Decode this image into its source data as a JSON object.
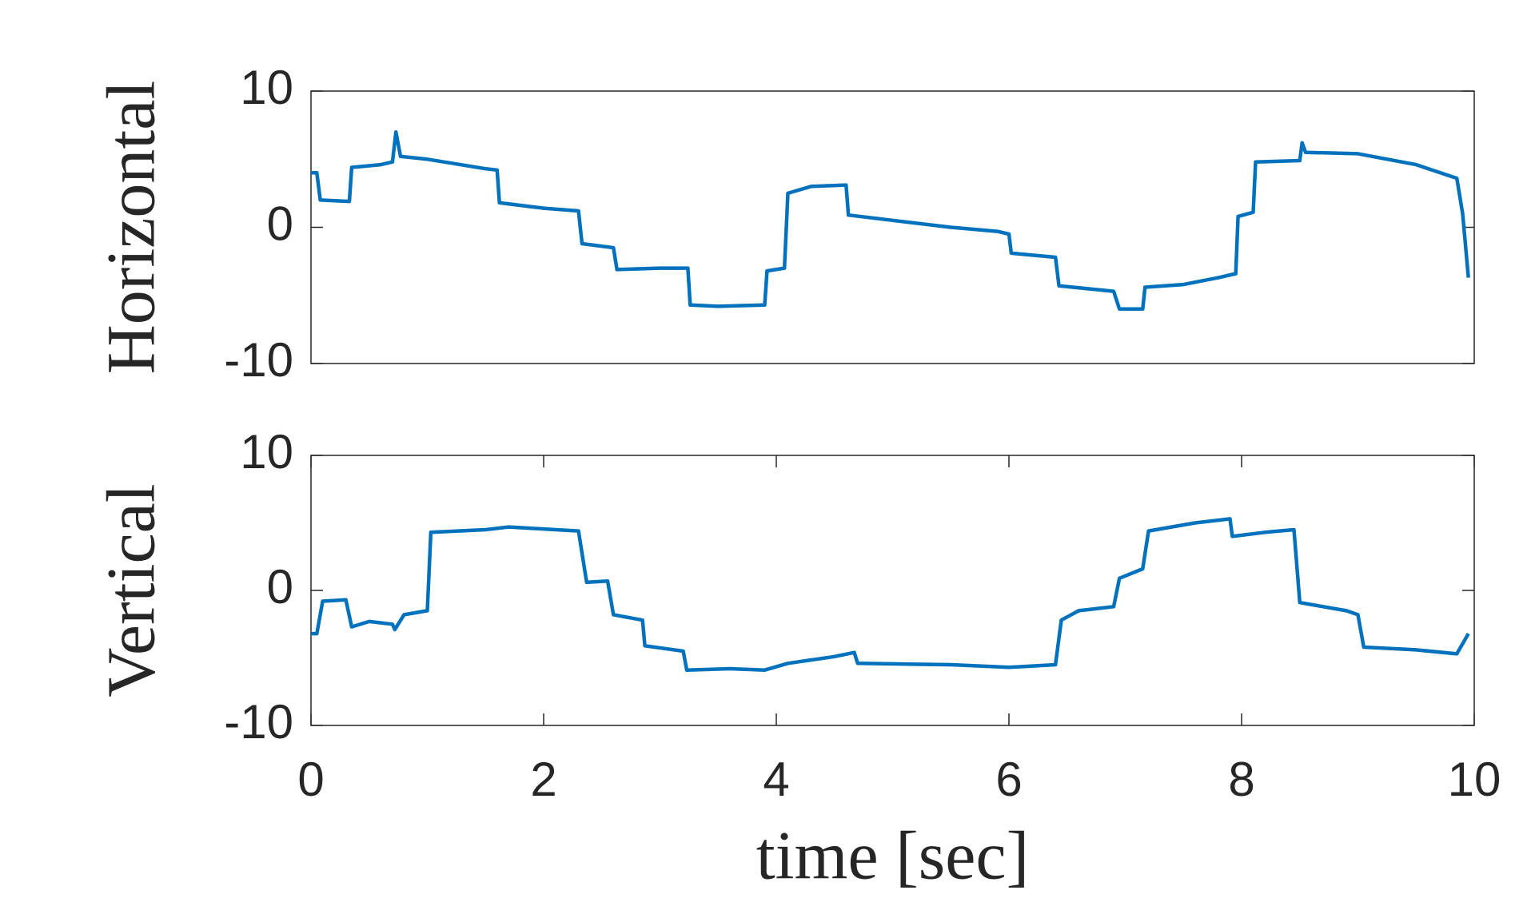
{
  "chart_data": [
    {
      "type": "line",
      "ylabel": "Horizontal",
      "color": "#0072bd",
      "xlim": [
        0,
        10
      ],
      "ylim": [
        -10,
        10
      ],
      "yticks": [
        -10,
        0,
        10
      ],
      "x": [
        0,
        0.05,
        0.08,
        0.33,
        0.35,
        0.6,
        0.7,
        0.73,
        0.77,
        1.0,
        1.5,
        1.6,
        1.62,
        2.0,
        2.3,
        2.33,
        2.6,
        2.63,
        3.0,
        3.24,
        3.26,
        3.5,
        3.9,
        3.92,
        4.07,
        4.1,
        4.3,
        4.6,
        4.62,
        5.5,
        5.9,
        6.0,
        6.02,
        6.4,
        6.43,
        6.9,
        6.95,
        7.15,
        7.17,
        7.5,
        7.8,
        7.95,
        7.97,
        8.1,
        8.12,
        8.5,
        8.52,
        8.55,
        9.0,
        9.5,
        9.85,
        9.9,
        9.95
      ],
      "values": [
        4,
        4,
        2,
        1.9,
        4.4,
        4.6,
        4.8,
        7,
        5.2,
        5,
        4.3,
        4.2,
        1.8,
        1.4,
        1.2,
        -1.2,
        -1.5,
        -3.1,
        -3.0,
        -3.0,
        -5.7,
        -5.8,
        -5.7,
        -3.2,
        -3.0,
        2.5,
        3,
        3.1,
        0.9,
        0,
        -0.3,
        -0.5,
        -1.9,
        -2.2,
        -4.3,
        -4.7,
        -6,
        -6,
        -4.4,
        -4.2,
        -3.7,
        -3.4,
        0.8,
        1.1,
        4.8,
        4.9,
        6.2,
        5.5,
        5.4,
        4.6,
        3.6,
        1,
        -3.7
      ]
    },
    {
      "type": "line",
      "ylabel": "Vertical",
      "xlabel": "time [sec]",
      "color": "#0072bd",
      "xlim": [
        0,
        10
      ],
      "ylim": [
        -10,
        10
      ],
      "yticks": [
        -10,
        0,
        10
      ],
      "xticks": [
        0,
        2,
        4,
        6,
        8,
        10
      ],
      "x": [
        0,
        0.05,
        0.1,
        0.3,
        0.35,
        0.5,
        0.7,
        0.72,
        0.8,
        1.0,
        1.03,
        1.5,
        1.7,
        2.3,
        2.37,
        2.55,
        2.6,
        2.85,
        2.87,
        3.2,
        3.23,
        3.6,
        3.9,
        4.1,
        4.5,
        4.67,
        4.7,
        5.5,
        6.0,
        6.4,
        6.45,
        6.6,
        6.9,
        6.95,
        7.15,
        7.2,
        7.6,
        7.9,
        7.92,
        8.2,
        8.45,
        8.5,
        8.9,
        9.0,
        9.05,
        9.5,
        9.85,
        9.95
      ],
      "values": [
        -3.2,
        -3.2,
        -0.8,
        -0.7,
        -2.7,
        -2.3,
        -2.5,
        -2.9,
        -1.8,
        -1.5,
        4.3,
        4.5,
        4.7,
        4.4,
        0.6,
        0.7,
        -1.8,
        -2.2,
        -4.1,
        -4.5,
        -5.9,
        -5.8,
        -5.9,
        -5.4,
        -4.9,
        -4.6,
        -5.4,
        -5.5,
        -5.7,
        -5.5,
        -2.2,
        -1.5,
        -1.2,
        0.9,
        1.6,
        4.4,
        5,
        5.3,
        4,
        4.3,
        4.5,
        -0.9,
        -1.5,
        -1.8,
        -4.2,
        -4.4,
        -4.7,
        -3.2
      ]
    }
  ]
}
